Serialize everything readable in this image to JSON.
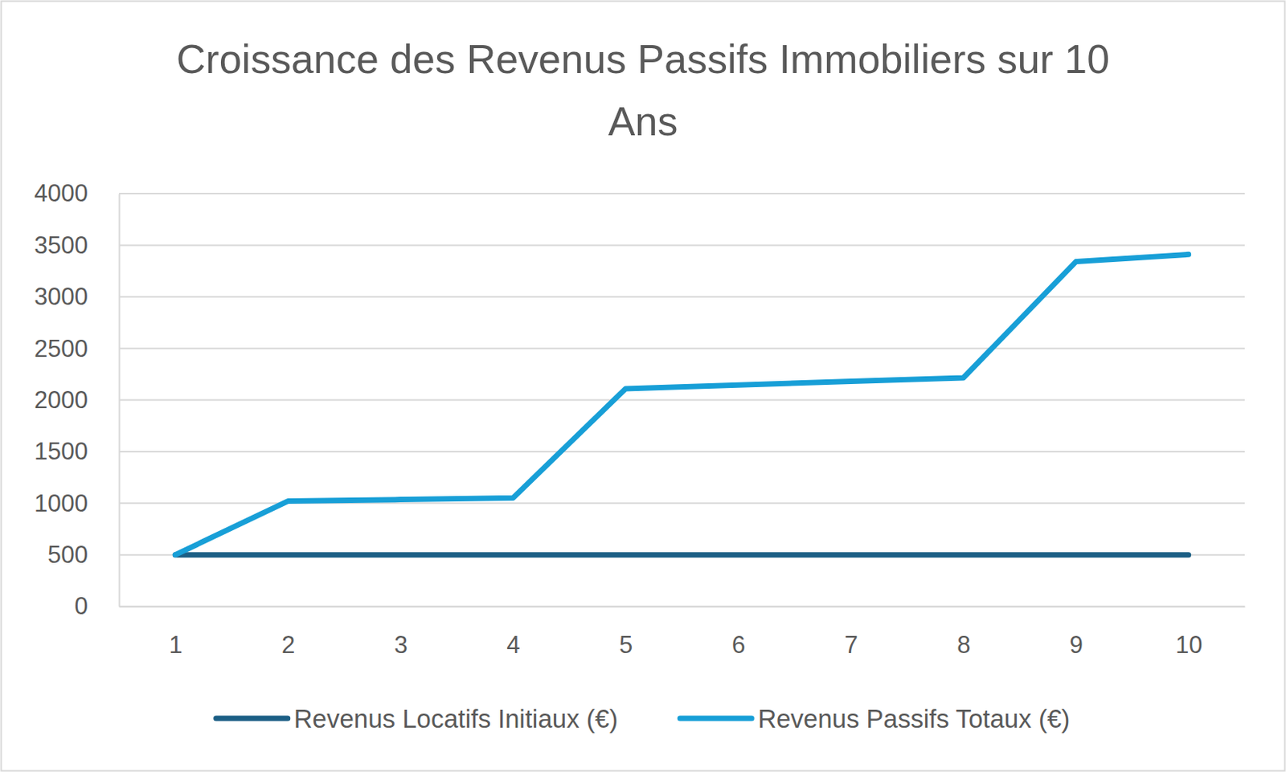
{
  "chart_data": {
    "type": "line",
    "title": "Croissance des Revenus Passifs Immobiliers sur 10 Ans",
    "categories": [
      "1",
      "2",
      "3",
      "4",
      "5",
      "6",
      "7",
      "8",
      "9",
      "10"
    ],
    "series": [
      {
        "name": "Revenus Locatifs Initiaux (€)",
        "color": "#1c5f85",
        "values": [
          500,
          500,
          500,
          500,
          500,
          500,
          500,
          500,
          500,
          500
        ]
      },
      {
        "name": "Revenus Passifs Totaux (€)",
        "color": "#189fd7",
        "values": [
          500,
          1020,
          1035,
          1050,
          2110,
          2145,
          2180,
          2215,
          3340,
          3410
        ]
      }
    ],
    "ylim": [
      0,
      4000
    ],
    "yticks": [
      0,
      500,
      1000,
      1500,
      2000,
      2500,
      3000,
      3500,
      4000
    ],
    "grid": true,
    "legend": "bottom"
  }
}
